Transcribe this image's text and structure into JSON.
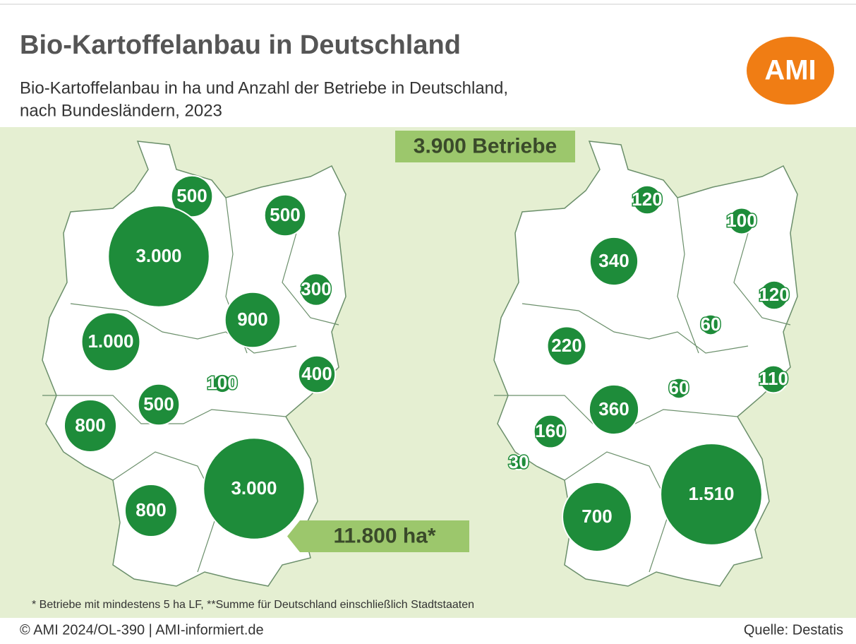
{
  "header": {
    "title": "Bio-Kartoffelanbau in Deutschland",
    "subtitle_lines": [
      "Bio-Kartoffelanbau in ha und Anzahl der Betriebe in Deutschland,",
      "nach Bundesländern, 2023"
    ],
    "logo": "AMI"
  },
  "maps": [
    {
      "total": "11.800 ha*",
      "bubbles": [
        500,
        500,
        {
          "value": 3000,
          "label": "3.000"
        },
        300,
        900,
        {
          "value": 1000,
          "label": "1.000"
        },
        400,
        100,
        500,
        800,
        {
          "value": 3000,
          "label": "3.000"
        },
        800
      ]
    },
    {
      "total": "3.900 Betriebe",
      "bubbles": [
        120,
        100,
        340,
        120,
        60,
        220,
        60,
        110,
        360,
        160,
        30,
        {
          "value": 1510,
          "label": "1.510"
        },
        700
      ]
    }
  ],
  "footnote": "* Betriebe mit mindestens 5 ha LF, **Summe für Deutschland einschließlich Stadtstaaten",
  "copyright": "© AMI 2024/OL-390 | AMI-informiert.de",
  "source": "Quelle: Destatis"
}
